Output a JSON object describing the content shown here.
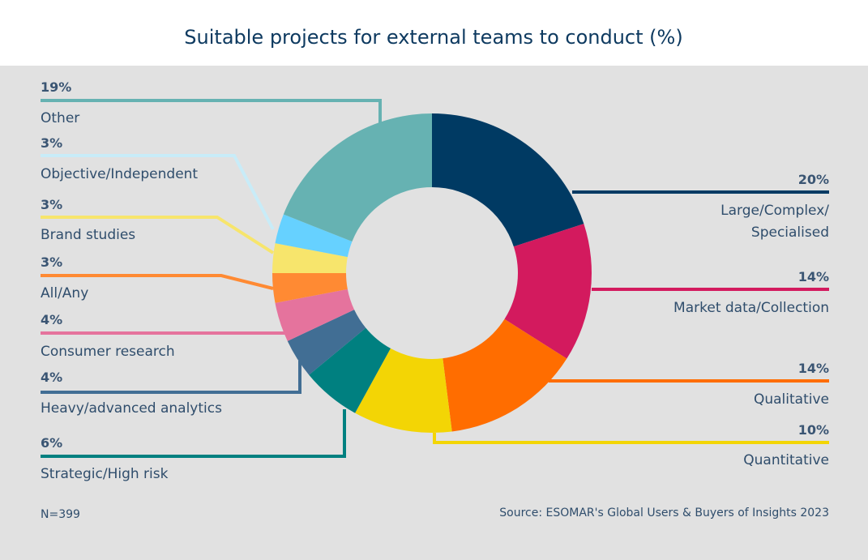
{
  "chart_data": {
    "type": "pie",
    "subtype": "donut",
    "title": "Suitable projects for external teams to conduct (%)",
    "categories": [
      "Large/Complex/Specialised",
      "Market data/Collection",
      "Qualitative",
      "Quantitative",
      "Strategic/High risk",
      "Heavy/advanced analytics",
      "Consumer research",
      "All/Any",
      "Brand studies",
      "Objective/Independent",
      "Other"
    ],
    "values": [
      20,
      14,
      14,
      10,
      6,
      4,
      4,
      3,
      3,
      3,
      19
    ],
    "value_labels": [
      "20%",
      "14%",
      "14%",
      "10%",
      "6%",
      "4%",
      "4%",
      "3%",
      "3%",
      "3%",
      "19%"
    ],
    "label_lines": [
      [
        "Large/Complex/",
        "Specialised"
      ],
      [
        "Market data/Collection"
      ],
      [
        "Qualitative"
      ],
      [
        "Quantitative"
      ],
      [
        "Strategic/High risk"
      ],
      [
        "Heavy/advanced analytics"
      ],
      [
        "Consumer research"
      ],
      [
        "All/Any"
      ],
      [
        "Brand studies"
      ],
      [
        "Objective/Independent"
      ],
      [
        "Other"
      ]
    ],
    "colors": [
      "#003a63",
      "#d31a5e",
      "#ff6d00",
      "#f3d505",
      "#008080",
      "#416e94",
      "#e5739d",
      "#ff8a33",
      "#f7e56c",
      "#66d1ff",
      "#66b2b2"
    ],
    "leader_colors": [
      "#003a63",
      "#d31a5e",
      "#ff6d00",
      "#f3d505",
      "#008080",
      "#416e94",
      "#e5739d",
      "#ff8a33",
      "#f7e56c",
      "#c8ecf8",
      "#66b2b2"
    ],
    "note": "N=399",
    "source": "Source: ESOMAR's Global Users & Buyers of Insights 2023"
  }
}
